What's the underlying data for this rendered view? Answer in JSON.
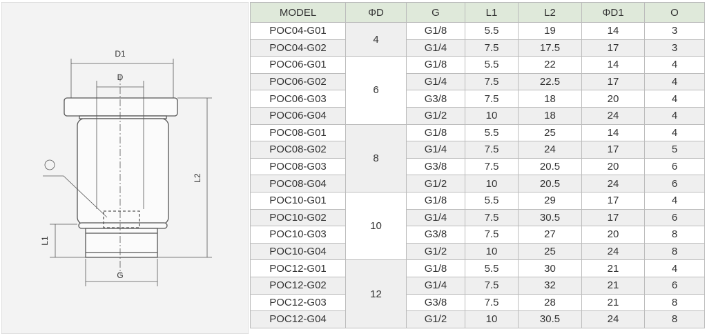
{
  "drawing": {
    "labels": {
      "d1": "D1",
      "d": "D",
      "l2": "L2",
      "l1": "L1",
      "g": "G",
      "o": "O"
    }
  },
  "table": {
    "header": [
      "MODEL",
      "ΦD",
      "G",
      "L1",
      "L2",
      "ΦD1",
      "O"
    ],
    "groups": [
      {
        "d": 4,
        "rows": [
          [
            "POC04-G01",
            "G1/8",
            5.5,
            19,
            14,
            3
          ],
          [
            "POC04-G02",
            "G1/4",
            7.5,
            17.5,
            17,
            3
          ]
        ]
      },
      {
        "d": 6,
        "rows": [
          [
            "POC06-G01",
            "G1/8",
            5.5,
            22,
            14,
            4
          ],
          [
            "POC06-G02",
            "G1/4",
            7.5,
            22.5,
            17,
            4
          ],
          [
            "POC06-G03",
            "G3/8",
            7.5,
            18,
            20,
            4
          ],
          [
            "POC06-G04",
            "G1/2",
            10,
            18,
            24,
            4
          ]
        ]
      },
      {
        "d": 8,
        "rows": [
          [
            "POC08-G01",
            "G1/8",
            5.5,
            25,
            14,
            4
          ],
          [
            "POC08-G02",
            "G1/4",
            7.5,
            24,
            17,
            5
          ],
          [
            "POC08-G03",
            "G3/8",
            7.5,
            20.5,
            20,
            6
          ],
          [
            "POC08-G04",
            "G1/2",
            10,
            20.5,
            24,
            6
          ]
        ]
      },
      {
        "d": 10,
        "rows": [
          [
            "POC10-G01",
            "G1/8",
            5.5,
            29,
            17,
            4
          ],
          [
            "POC10-G02",
            "G1/4",
            7.5,
            30.5,
            17,
            6
          ],
          [
            "POC10-G03",
            "G3/8",
            7.5,
            27,
            20,
            8
          ],
          [
            "POC10-G04",
            "G1/2",
            10,
            25,
            24,
            8
          ]
        ]
      },
      {
        "d": 12,
        "rows": [
          [
            "POC12-G01",
            "G1/8",
            5.5,
            30,
            21,
            4
          ],
          [
            "POC12-G02",
            "G1/4",
            7.5,
            32,
            21,
            6
          ],
          [
            "POC12-G03",
            "G3/8",
            7.5,
            28,
            21,
            8
          ],
          [
            "POC12-G04",
            "G1/2",
            10,
            30.5,
            24,
            8
          ]
        ]
      }
    ]
  }
}
